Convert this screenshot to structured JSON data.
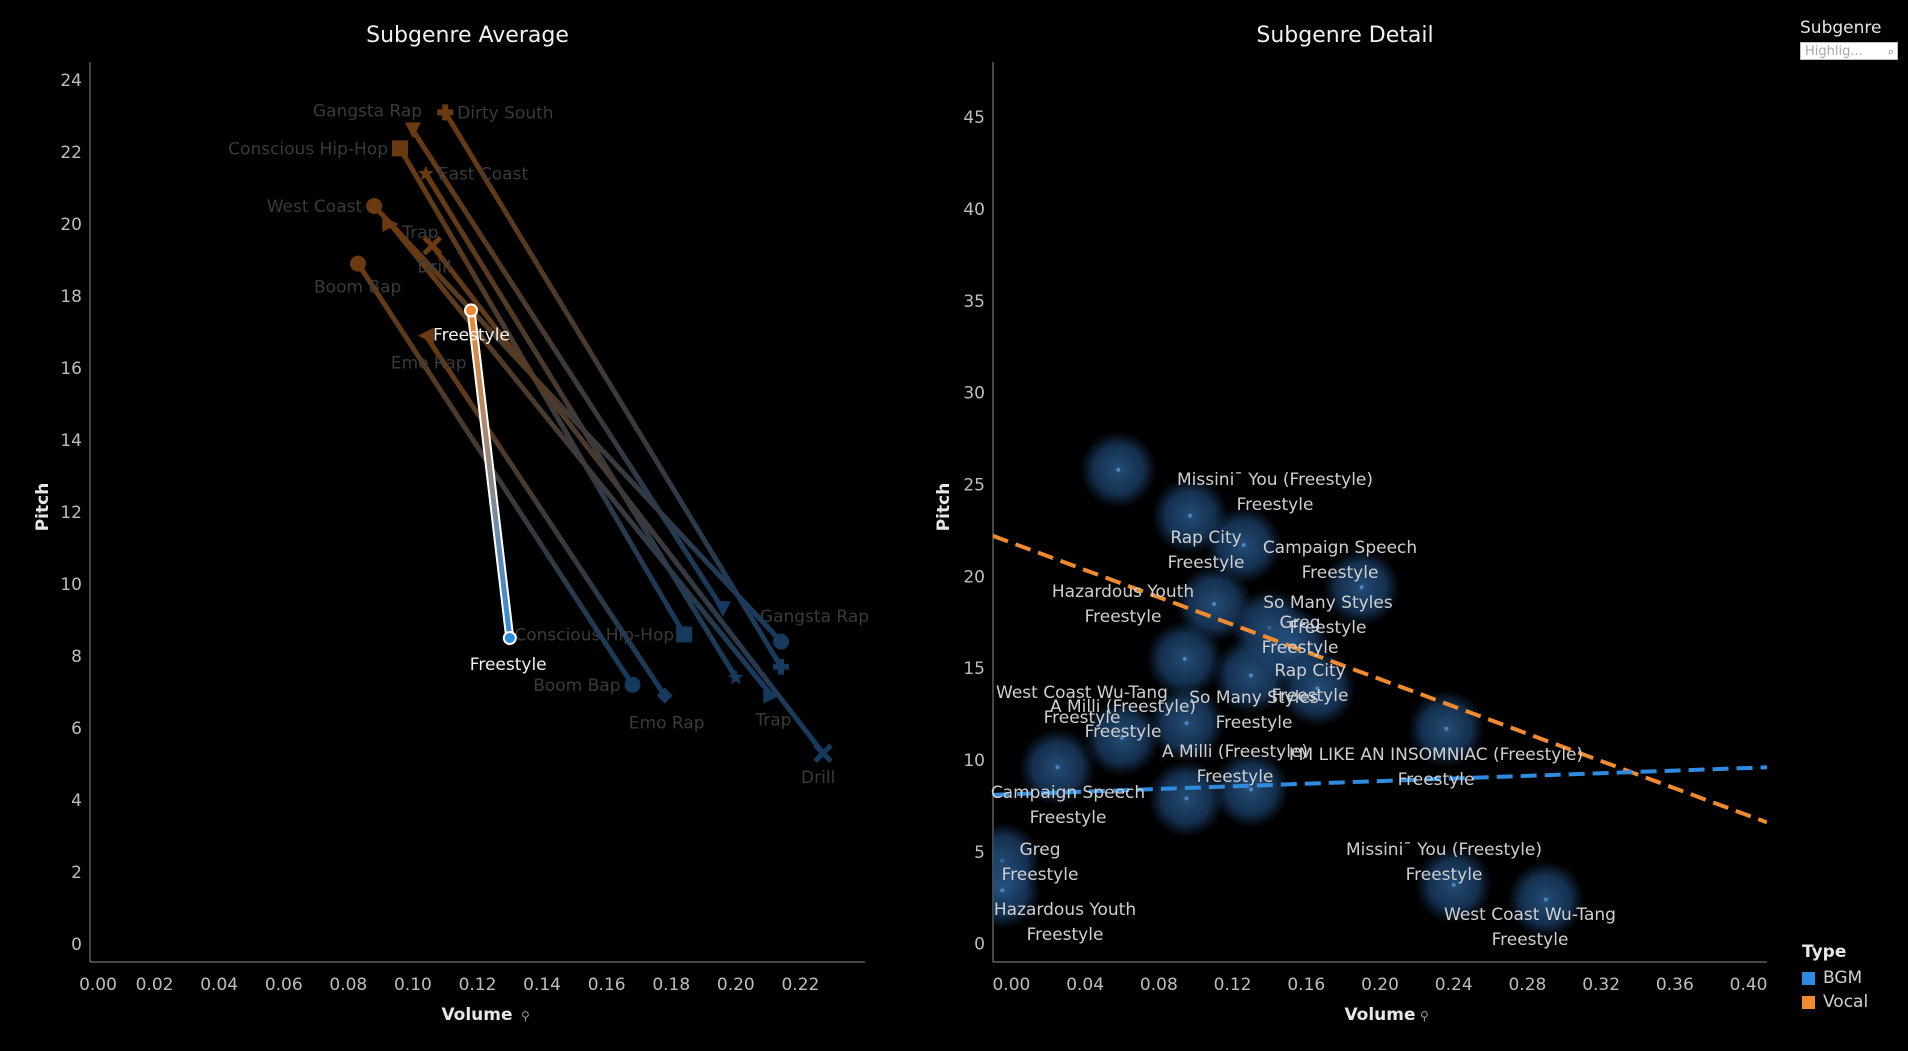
{
  "legend": {
    "subgenre_title": "Subgenre",
    "highlight_placeholder": "Highlig...",
    "type_title": "Type",
    "types": [
      {
        "label": "BGM",
        "color": "#2f8be0"
      },
      {
        "label": "Vocal",
        "color": "#ef8a2e"
      }
    ]
  },
  "chart_data": [
    {
      "type": "line",
      "title": "Subgenre Average",
      "xlabel": "Volume",
      "ylabel": "Pitch",
      "xlim": [
        0.0,
        0.24
      ],
      "ylim": [
        -0.5,
        24.5
      ],
      "xticks": [
        "0.00",
        "0.02",
        "0.04",
        "0.06",
        "0.08",
        "0.10",
        "0.12",
        "0.14",
        "0.16",
        "0.18",
        "0.20",
        "0.22"
      ],
      "yticks": [
        "0",
        "2",
        "4",
        "6",
        "8",
        "10",
        "12",
        "14",
        "16",
        "18",
        "20",
        "22",
        "24"
      ],
      "highlighted": "Freestyle",
      "series": [
        {
          "name": "Gangsta Rap",
          "vocal": [
            0.1,
            22.6
          ],
          "bgm": [
            0.196,
            9.3
          ]
        },
        {
          "name": "Dirty South",
          "vocal": [
            0.11,
            23.1
          ],
          "bgm": [
            0.214,
            7.7
          ]
        },
        {
          "name": "Conscious Hip-Hop",
          "vocal": [
            0.096,
            22.1
          ],
          "bgm": [
            0.184,
            8.6
          ]
        },
        {
          "name": "East Coast",
          "vocal": [
            0.104,
            21.4
          ],
          "bgm": [
            0.2,
            7.4
          ]
        },
        {
          "name": "West Coast",
          "vocal": [
            0.088,
            20.5
          ],
          "bgm": [
            0.214,
            8.4
          ]
        },
        {
          "name": "Trap",
          "vocal": [
            0.093,
            20.0
          ],
          "bgm": [
            0.211,
            6.9
          ]
        },
        {
          "name": "Drill",
          "vocal": [
            0.106,
            19.4
          ],
          "bgm": [
            0.227,
            5.3
          ]
        },
        {
          "name": "Boom Bap",
          "vocal": [
            0.083,
            18.9
          ],
          "bgm": [
            0.168,
            7.2
          ]
        },
        {
          "name": "Freestyle",
          "vocal": [
            0.118,
            17.6
          ],
          "bgm": [
            0.13,
            8.5
          ]
        },
        {
          "name": "Emo Rap",
          "vocal": [
            0.104,
            16.9
          ],
          "bgm": [
            0.178,
            6.9
          ]
        }
      ]
    },
    {
      "type": "scatter",
      "title": "Subgenre Detail",
      "xlabel": "Volume",
      "ylabel": "Pitch",
      "xlim": [
        -0.01,
        0.41
      ],
      "ylim": [
        -1,
        48
      ],
      "xticks": [
        "0.00",
        "0.04",
        "0.08",
        "0.12",
        "0.16",
        "0.20",
        "0.24",
        "0.28",
        "0.32",
        "0.36",
        "0.40"
      ],
      "yticks": [
        "0",
        "5",
        "10",
        "15",
        "20",
        "25",
        "30",
        "35",
        "40",
        "45"
      ],
      "points": [
        {
          "x": 0.058,
          "y": 25.8,
          "label": ""
        },
        {
          "x": 0.097,
          "y": 23.3,
          "label": "Missini¯ You (Freestyle)",
          "sub": "Freestyle"
        },
        {
          "x": 0.126,
          "y": 21.7,
          "label": "Rap City",
          "sub": "Freestyle"
        },
        {
          "x": 0.19,
          "y": 19.4,
          "label": "Campaign Speech",
          "sub": "Freestyle"
        },
        {
          "x": 0.11,
          "y": 18.5,
          "label": "Hazardous Youth",
          "sub": "Freestyle"
        },
        {
          "x": 0.14,
          "y": 17.2,
          "label": "So Many Styles",
          "sub": "Freestyle"
        },
        {
          "x": 0.152,
          "y": 16.2,
          "label": "Greg",
          "sub": "Freestyle"
        },
        {
          "x": 0.094,
          "y": 15.5,
          "label": "",
          "sub": ""
        },
        {
          "x": 0.166,
          "y": 13.9,
          "label": "Rap City",
          "sub": "Freestyle"
        },
        {
          "x": 0.13,
          "y": 14.6,
          "label": "So Many Styles",
          "sub": "Freestyle"
        },
        {
          "x": 0.095,
          "y": 12.0,
          "label": "A Milli (Freestyle)",
          "sub": "Freestyle"
        },
        {
          "x": 0.06,
          "y": 11.2,
          "label": "West Coast Wu-Tang",
          "sub": "Freestyle"
        },
        {
          "x": 0.236,
          "y": 11.7,
          "label": "I'M LIKE AN INSOMNIAC (Freestyle)",
          "sub": "Freestyle"
        },
        {
          "x": 0.025,
          "y": 9.6,
          "label": "Campaign Speech",
          "sub": "Freestyle"
        },
        {
          "x": 0.13,
          "y": 8.4,
          "label": "A Milli (Freestyle)",
          "sub": "Freestyle"
        },
        {
          "x": 0.095,
          "y": 7.9,
          "label": "",
          "sub": ""
        },
        {
          "x": -0.005,
          "y": 4.5,
          "label": "Greg",
          "sub": "Freestyle"
        },
        {
          "x": -0.005,
          "y": 2.9,
          "label": "Hazardous Youth",
          "sub": "Freestyle"
        },
        {
          "x": 0.24,
          "y": 3.2,
          "label": "Missini¯ You (Freestyle)",
          "sub": "Freestyle"
        },
        {
          "x": 0.29,
          "y": 2.4,
          "label": "West Coast Wu-Tang",
          "sub": "Freestyle"
        }
      ],
      "trend_lines": [
        {
          "name": "Vocal",
          "x": [
            -0.01,
            0.41
          ],
          "y": [
            22.2,
            6.6
          ]
        },
        {
          "name": "BGM",
          "x": [
            -0.01,
            0.41
          ],
          "y": [
            8.1,
            9.6
          ]
        }
      ]
    }
  ]
}
